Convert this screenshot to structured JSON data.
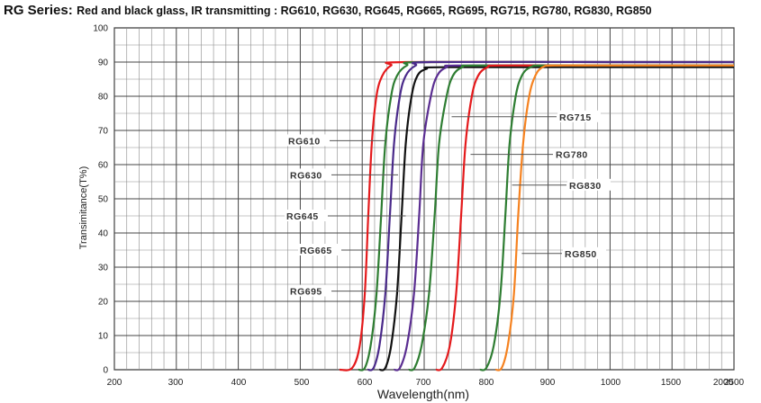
{
  "title": {
    "lead": "RG Series:",
    "rest": "Red and black glass, IR transmitting : RG610, RG630, RG645, RG665, RG695, RG715, RG780, RG830, RG850"
  },
  "chart_data": {
    "type": "line",
    "title": "RG Series: Red and black glass, IR transmitting : RG610, RG630, RG645, RG665, RG695, RG715, RG780, RG830, RG850",
    "xlabel": "Wavelength(nm)",
    "ylabel": "Transimitance(T%)",
    "x_ticks": [
      "200",
      "300",
      "400",
      "500",
      "600",
      "700",
      "800",
      "900",
      "1000",
      "1500",
      "2000",
      "2500"
    ],
    "y_ticks": [
      "0",
      "10",
      "20",
      "30",
      "40",
      "50",
      "60",
      "70",
      "80",
      "90",
      "100"
    ],
    "ylim": [
      0,
      100
    ],
    "grid": true,
    "series": [
      {
        "name": "RG610",
        "color": "#e41a1c",
        "label_wavelength": 635,
        "label_transmittance": 67,
        "x": [
          560,
          580,
          592,
          600,
          606,
          612,
          620,
          630,
          645,
          670,
          1000,
          2500
        ],
        "y": [
          0,
          0.5,
          7,
          22,
          45,
          66,
          80,
          86,
          89,
          90,
          90,
          90
        ]
      },
      {
        "name": "RG630",
        "color": "#2e7d32",
        "label_wavelength": 657,
        "label_transmittance": 57,
        "x": [
          590,
          600,
          610,
          620,
          628,
          635,
          645,
          655,
          672,
          700,
          1000,
          2500
        ],
        "y": [
          0,
          0.5,
          7,
          22,
          45,
          66,
          80,
          86,
          89,
          90,
          90,
          90
        ]
      },
      {
        "name": "RG645",
        "color": "#4a2a8a",
        "label_wavelength": 670,
        "label_transmittance": 45,
        "x": [
          605,
          615,
          625,
          635,
          643,
          650,
          660,
          670,
          687,
          712,
          1000,
          2500
        ],
        "y": [
          0,
          0.5,
          7,
          22,
          45,
          66,
          80,
          86,
          89,
          90,
          90,
          90
        ]
      },
      {
        "name": "RG665",
        "color": "#111111",
        "label_wavelength": 688,
        "label_transmittance": 35,
        "x": [
          625,
          635,
          645,
          655,
          663,
          670,
          680,
          690,
          705,
          730,
          1000,
          2500
        ],
        "y": [
          0,
          0.5,
          7,
          22,
          45,
          66,
          80,
          86,
          88,
          88.5,
          88.5,
          88.5
        ]
      },
      {
        "name": "RG695",
        "color": "#5a2d91",
        "label_wavelength": 712,
        "label_transmittance": 23,
        "x": [
          650,
          660,
          672,
          684,
          693,
          700,
          712,
          722,
          737,
          760,
          1000,
          2500
        ],
        "y": [
          0,
          0.5,
          7,
          22,
          45,
          66,
          80,
          86,
          88.5,
          89,
          89,
          89
        ]
      },
      {
        "name": "RG715",
        "color": "#2e7d32",
        "label_wavelength": 745,
        "label_transmittance": 74,
        "x": [
          675,
          685,
          697,
          709,
          718,
          725,
          737,
          747,
          762,
          785,
          1000,
          2500
        ],
        "y": [
          0,
          0.5,
          7,
          22,
          45,
          66,
          80,
          86,
          88.5,
          89,
          89,
          89
        ]
      },
      {
        "name": "RG780",
        "color": "#e41a1c",
        "label_wavelength": 775,
        "label_transmittance": 63,
        "x": [
          720,
          730,
          742,
          752,
          760,
          767,
          777,
          787,
          802,
          825,
          1000,
          2500
        ],
        "y": [
          0,
          0.5,
          7,
          22,
          45,
          66,
          80,
          86,
          88.5,
          89,
          89,
          89
        ]
      },
      {
        "name": "RG830",
        "color": "#2e7d32",
        "label_wavelength": 842,
        "label_transmittance": 54,
        "x": [
          790,
          800,
          812,
          823,
          831,
          838,
          848,
          858,
          872,
          895,
          1000,
          2500
        ],
        "y": [
          0,
          0.5,
          7,
          22,
          45,
          66,
          80,
          86,
          88.5,
          89,
          89,
          89
        ]
      },
      {
        "name": "RG850",
        "color": "#f58220",
        "label_wavelength": 858,
        "label_transmittance": 34,
        "x": [
          815,
          825,
          835,
          845,
          852,
          860,
          870,
          880,
          892,
          912,
          1000,
          2500
        ],
        "y": [
          0,
          0.5,
          7,
          22,
          45,
          66,
          80,
          86,
          88.5,
          89,
          89,
          89
        ]
      }
    ]
  }
}
